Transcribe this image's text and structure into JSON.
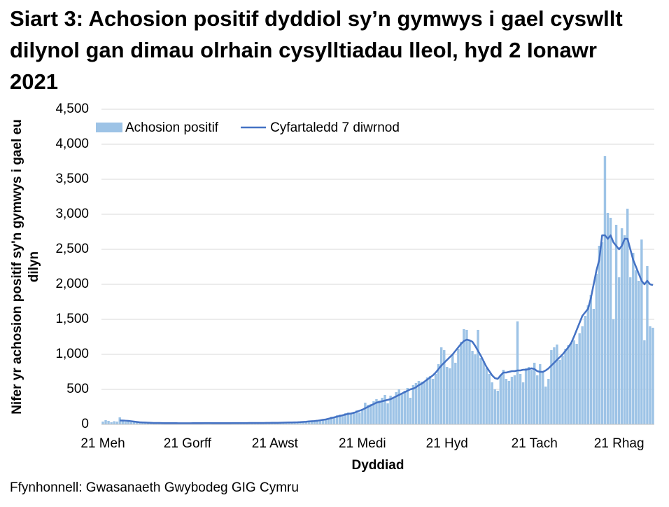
{
  "chart_data": {
    "type": "bar",
    "title": "Siart 3: Achosion positif dyddiol sy’n gymwys i gael cyswllt dilynol gan dimau olrhain cysylltiadau lleol, hyd 2 Ionawr 2021",
    "y_label": "Nifer yr achosion positif sy'n gymwys i gael eu dilyn",
    "x_label": "Dyddiad",
    "source": "Ffynhonnell: Gwasanaeth Gwybodeg GIG Cymru",
    "ylim": [
      0,
      4500
    ],
    "yticks": [
      0,
      500,
      {
        "value": 1000,
        "label": "1,000"
      },
      {
        "value": 1500,
        "label": "1,500"
      },
      {
        "value": 2000,
        "label": "2,000"
      },
      {
        "value": 2500,
        "label": "2,500"
      },
      {
        "value": 3000,
        "label": "3,000"
      },
      {
        "value": 3500,
        "label": "3,500"
      },
      {
        "value": 4000,
        "label": "4,000"
      },
      {
        "value": 4500,
        "label": "4,500"
      }
    ],
    "grid": true,
    "legend": "top-left",
    "categories": [
      "21 Meh",
      null,
      null,
      null,
      null,
      null,
      null,
      null,
      null,
      null,
      null,
      null,
      null,
      null,
      null,
      null,
      null,
      null,
      null,
      null,
      null,
      null,
      null,
      null,
      null,
      null,
      null,
      null,
      null,
      null,
      "21 Gorff",
      null,
      null,
      null,
      null,
      null,
      null,
      null,
      null,
      null,
      null,
      null,
      null,
      null,
      null,
      null,
      null,
      null,
      null,
      null,
      null,
      null,
      null,
      null,
      null,
      null,
      null,
      null,
      null,
      null,
      null,
      "21 Awst",
      null,
      null,
      null,
      null,
      null,
      null,
      null,
      null,
      null,
      null,
      null,
      null,
      null,
      null,
      null,
      null,
      null,
      null,
      null,
      null,
      null,
      null,
      null,
      null,
      null,
      null,
      null,
      null,
      null,
      null,
      "21 Medi",
      null,
      null,
      null,
      null,
      null,
      null,
      null,
      null,
      null,
      null,
      null,
      null,
      null,
      null,
      null,
      null,
      null,
      null,
      null,
      null,
      null,
      null,
      null,
      null,
      null,
      null,
      null,
      null,
      null,
      "21 Hyd",
      null,
      null,
      null,
      null,
      null,
      null,
      null,
      null,
      null,
      null,
      null,
      null,
      null,
      null,
      null,
      null,
      null,
      null,
      null,
      null,
      null,
      null,
      null,
      null,
      null,
      null,
      null,
      null,
      null,
      null,
      "21 Tach",
      null,
      null,
      null,
      null,
      null,
      null,
      null,
      null,
      null,
      null,
      null,
      null,
      null,
      null,
      null,
      null,
      null,
      null,
      null,
      null,
      null,
      null,
      null,
      null,
      null,
      null,
      null,
      null,
      null,
      "21 Rhag",
      null,
      null,
      null,
      null,
      null,
      null,
      null,
      null,
      null,
      null,
      null,
      null
    ],
    "series": [
      {
        "name": "Achosion positif",
        "type": "bar",
        "color": "#9dc3e6",
        "values": [
          40,
          60,
          50,
          30,
          45,
          40,
          100,
          50,
          35,
          40,
          30,
          35,
          25,
          30,
          20,
          25,
          20,
          25,
          15,
          20,
          20,
          15,
          18,
          20,
          15,
          18,
          20,
          15,
          12,
          20,
          15,
          18,
          12,
          20,
          30,
          15,
          18,
          20,
          25,
          15,
          18,
          20,
          15,
          12,
          18,
          20,
          15,
          25,
          18,
          20,
          15,
          18,
          20,
          25,
          18,
          20,
          15,
          22,
          18,
          25,
          20,
          25,
          30,
          20,
          25,
          35,
          30,
          25,
          30,
          35,
          30,
          40,
          35,
          50,
          45,
          40,
          60,
          55,
          70,
          60,
          90,
          110,
          100,
          130,
          140,
          120,
          160,
          170,
          150,
          180,
          200,
          170,
          220,
          310,
          280,
          290,
          330,
          360,
          340,
          380,
          420,
          300,
          410,
          380,
          460,
          500,
          430,
          480,
          520,
          380,
          560,
          590,
          620,
          610,
          600,
          670,
          690,
          650,
          720,
          860,
          1100,
          1060,
          820,
          800,
          1000,
          880,
          1080,
          1180,
          1360,
          1350,
          1200,
          1050,
          1000,
          1350,
          950,
          900,
          800,
          720,
          600,
          500,
          480,
          700,
          780,
          650,
          620,
          680,
          700,
          1470,
          720,
          600,
          800,
          820,
          780,
          880,
          700,
          860,
          750,
          540,
          650,
          1060,
          1100,
          1140,
          920,
          980,
          1080,
          1130,
          1160,
          1200,
          1150,
          1300,
          1400,
          1550,
          1700,
          1850,
          1650,
          2150,
          2550,
          2600,
          3830,
          3020,
          2950,
          1500,
          2850,
          2100,
          2800,
          2700,
          3080,
          2100,
          2450,
          2200,
          2050,
          2640,
          1200,
          2260,
          1400,
          1380
        ]
      },
      {
        "name": "Cyfartaledd 7 diwrnod",
        "type": "line",
        "color": "#4472c4",
        "values": [
          null,
          null,
          null,
          null,
          null,
          null,
          55,
          55,
          52,
          50,
          45,
          40,
          35,
          30,
          28,
          26,
          24,
          22,
          20,
          20,
          20,
          19,
          18,
          18,
          18,
          17,
          17,
          16,
          16,
          16,
          16,
          16,
          17,
          18,
          18,
          18,
          19,
          19,
          19,
          18,
          18,
          18,
          18,
          18,
          18,
          18,
          19,
          19,
          19,
          19,
          19,
          19,
          20,
          20,
          20,
          20,
          20,
          20,
          21,
          21,
          22,
          22,
          23,
          24,
          25,
          26,
          27,
          28,
          29,
          30,
          32,
          35,
          38,
          42,
          45,
          48,
          52,
          58,
          65,
          70,
          80,
          90,
          100,
          110,
          120,
          130,
          140,
          150,
          155,
          165,
          180,
          195,
          210,
          230,
          250,
          270,
          290,
          310,
          320,
          330,
          340,
          350,
          360,
          380,
          400,
          420,
          440,
          460,
          480,
          500,
          510,
          530,
          560,
          580,
          610,
          640,
          670,
          700,
          740,
          790,
          840,
          880,
          920,
          960,
          1000,
          1050,
          1100,
          1150,
          1190,
          1210,
          1200,
          1180,
          1120,
          1050,
          980,
          900,
          820,
          760,
          700,
          660,
          650,
          700,
          740,
          740,
          750,
          760,
          760,
          770,
          770,
          780,
          780,
          790,
          800,
          790,
          760,
          750,
          750,
          770,
          800,
          840,
          880,
          920,
          960,
          1000,
          1050,
          1100,
          1160,
          1250,
          1350,
          1450,
          1550,
          1600,
          1650,
          1800,
          2000,
          2200,
          2350,
          2700,
          2700,
          2650,
          2700,
          2600,
          2550,
          2500,
          2550,
          2650,
          2650,
          2500,
          2350,
          2250,
          2150,
          2050,
          2000,
          2050,
          2000,
          1990
        ]
      }
    ]
  }
}
